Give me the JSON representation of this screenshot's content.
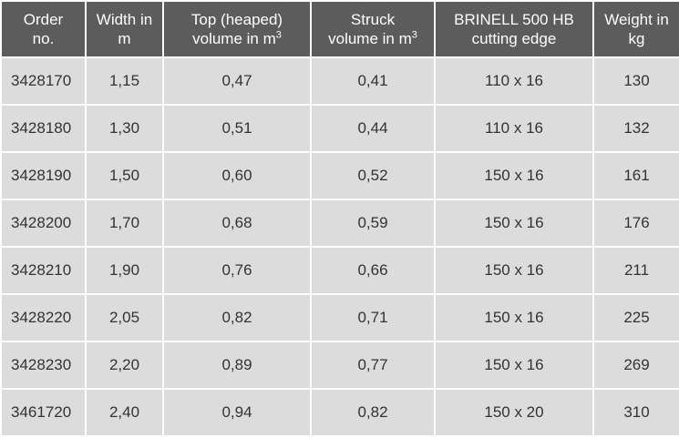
{
  "table": {
    "header": [
      {
        "lines": [
          "Order",
          "no."
        ]
      },
      {
        "lines": [
          "Width in",
          "m"
        ]
      },
      {
        "lines": [
          "Top (heaped)",
          "volume  in m"
        ],
        "sup": "3"
      },
      {
        "lines": [
          "Struck",
          "volume in m"
        ],
        "sup": "3"
      },
      {
        "lines": [
          "BRINELL 500 HB",
          "cutting edge"
        ]
      },
      {
        "lines": [
          "Weight in",
          "kg"
        ]
      }
    ],
    "rows": [
      [
        "3428170",
        "1,15",
        "0,47",
        "0,41",
        "110 x 16",
        "130"
      ],
      [
        "3428180",
        "1,30",
        "0,51",
        "0,44",
        "110 x 16",
        "132"
      ],
      [
        "3428190",
        "1,50",
        "0,60",
        "0,52",
        "150 x 16",
        "161"
      ],
      [
        "3428200",
        "1,70",
        "0,68",
        "0,59",
        "150 x 16",
        "176"
      ],
      [
        "3428210",
        "1,90",
        "0,76",
        "0,66",
        "150 x 16",
        "211"
      ],
      [
        "3428220",
        "2,05",
        "0,82",
        "0,71",
        "150 x 16",
        "225"
      ],
      [
        "3428230",
        "2,20",
        "0,89",
        "0,77",
        "150 x 16",
        "269"
      ],
      [
        "3461720",
        "2,40",
        "0,94",
        "0,82",
        "150 x 20",
        "310"
      ]
    ]
  }
}
